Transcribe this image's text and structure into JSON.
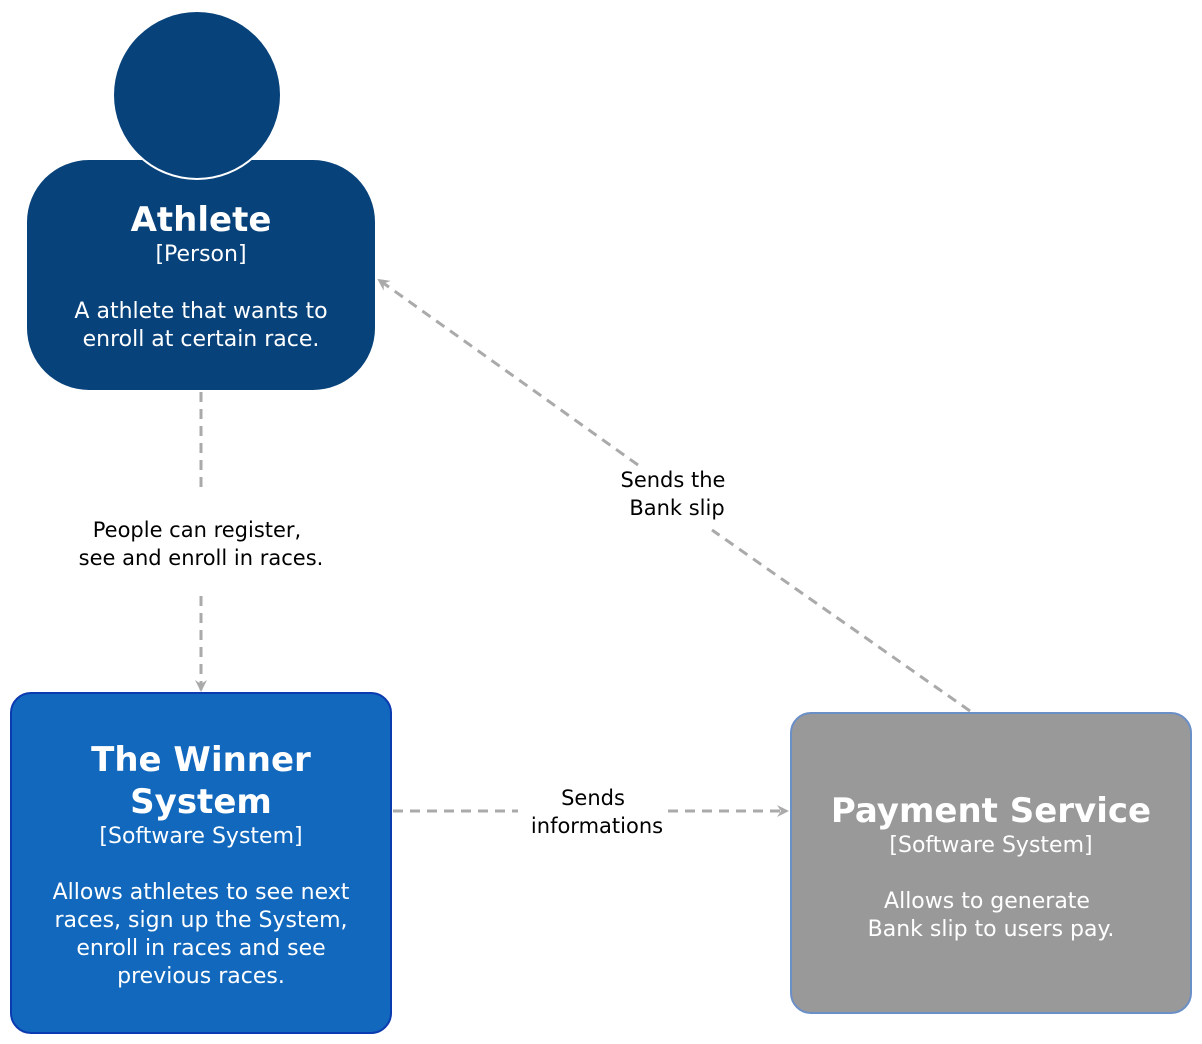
{
  "colors": {
    "person": "#08427b",
    "system": "#1168bd",
    "system_border": "#0b3bb0",
    "external": "#999999",
    "external_border": "#6b8fc7",
    "edge": "#aaaaaa",
    "text_light": "#ffffff",
    "text_dark": "#000000"
  },
  "nodes": {
    "athlete": {
      "name": "Athlete",
      "type": "[Person]",
      "description_line1": "A athlete that wants to",
      "description_line2": "enroll at certain race."
    },
    "winner_system": {
      "name_line1": "The Winner",
      "name_line2": "System",
      "type": "[Software System]",
      "description_line1": "Allows athletes to see next",
      "description_line2": "races, sign up the System,",
      "description_line3": "enroll in races and see",
      "description_line4": "previous races."
    },
    "payment_service": {
      "name": "Payment Service",
      "type": "[Software System]",
      "description_line1": "Allows to generate",
      "description_line2": "Bank slip to users pay."
    }
  },
  "edges": {
    "athlete_to_system": {
      "label_line1": "People can register,",
      "label_line2": "see and enroll in races."
    },
    "system_to_payment": {
      "label_line1": "Sends",
      "label_line2": "informations"
    },
    "payment_to_athlete": {
      "label_line1": "Sends the",
      "label_line2": "Bank slip"
    }
  }
}
